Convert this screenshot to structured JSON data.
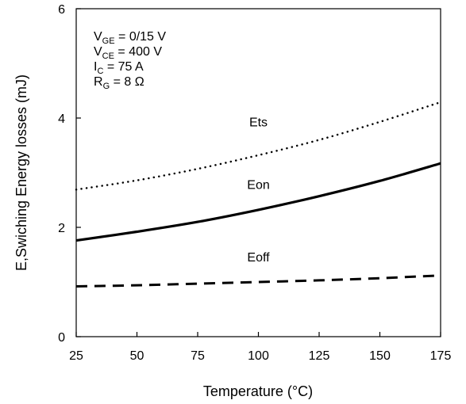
{
  "chart_data": {
    "type": "line",
    "title": "",
    "xlabel": "Temperature (°C)",
    "ylabel": "E,Swiching Energy losses (mJ)",
    "xlim": [
      25,
      175
    ],
    "ylim": [
      0,
      6
    ],
    "xticks": [
      25,
      50,
      75,
      100,
      125,
      150,
      175
    ],
    "yticks": [
      0,
      2,
      4,
      6
    ],
    "grid": false,
    "conditions": [
      {
        "main": "V",
        "sub": "GE",
        "rest": " = 0/15 V"
      },
      {
        "main": "V",
        "sub": "CE",
        "rest": " = 400 V"
      },
      {
        "main": "I",
        "sub": "C",
        "rest": " = 75 A"
      },
      {
        "main": "R",
        "sub": "G",
        "rest": " = 8 Ω"
      }
    ],
    "series": [
      {
        "name": "Ets",
        "style": "dotted",
        "color": "#000000",
        "label_at": [
          100,
          3.85
        ],
        "x": [
          25,
          50,
          75,
          100,
          125,
          150,
          175
        ],
        "y": [
          2.69,
          2.86,
          3.07,
          3.32,
          3.6,
          3.93,
          4.29
        ]
      },
      {
        "name": "Eon",
        "style": "solid",
        "color": "#000000",
        "label_at": [
          100,
          2.7
        ],
        "x": [
          25,
          50,
          75,
          100,
          125,
          150,
          175
        ],
        "y": [
          1.76,
          1.92,
          2.1,
          2.32,
          2.57,
          2.85,
          3.17
        ]
      },
      {
        "name": "Eoff",
        "style": "dashed",
        "color": "#000000",
        "label_at": [
          100,
          1.38
        ],
        "x": [
          25,
          50,
          75,
          100,
          125,
          150,
          175
        ],
        "y": [
          0.92,
          0.94,
          0.97,
          1.0,
          1.03,
          1.07,
          1.12
        ]
      }
    ]
  }
}
